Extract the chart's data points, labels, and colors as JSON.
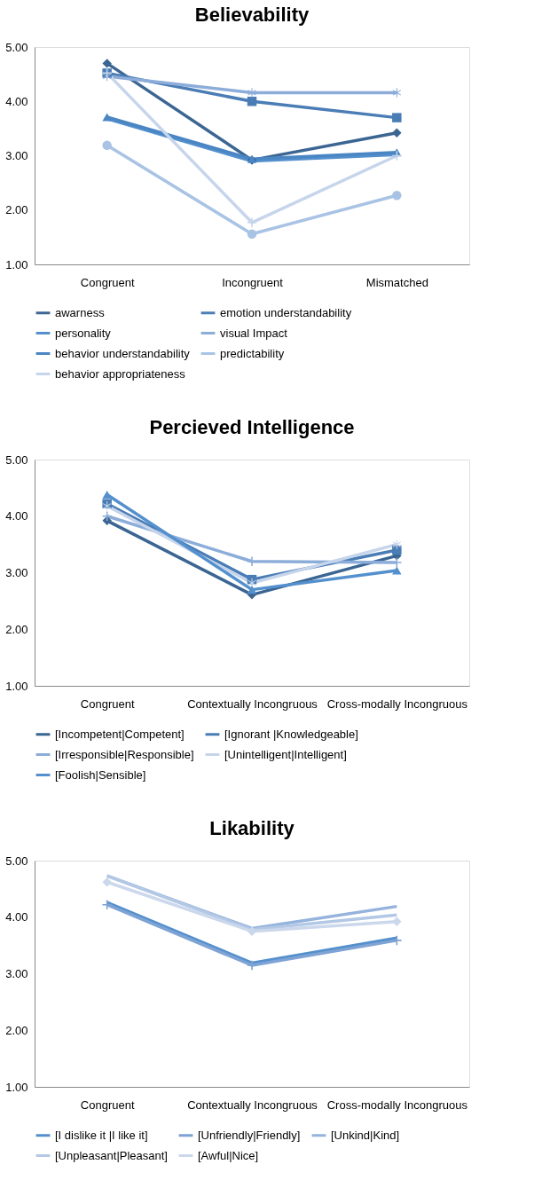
{
  "chart_data": [
    {
      "type": "line",
      "title": "Believability",
      "categories": [
        "Congruent",
        "Incongruent",
        "Mismatched"
      ],
      "ylim": [
        1,
        5
      ],
      "yticks": [
        {
          "value": 1,
          "label": "1.00"
        },
        {
          "value": 2,
          "label": "2.00"
        },
        {
          "value": 3,
          "label": "3.00"
        },
        {
          "value": 4,
          "label": "4.00"
        },
        {
          "value": 5,
          "label": "5.00"
        }
      ],
      "grid": false,
      "legend": "bottom",
      "series": [
        {
          "name": "awarness",
          "color": "#3b6592",
          "marker": "diamond",
          "values": [
            4.7,
            2.92,
            3.42
          ]
        },
        {
          "name": "emotion understandability",
          "color": "#4a7db5",
          "marker": "square",
          "values": [
            4.52,
            4.0,
            3.7
          ]
        },
        {
          "name": "personality",
          "color": "#5490cd",
          "marker": "none",
          "values": [
            3.68,
            2.9,
            3.02
          ]
        },
        {
          "name": "visual Impact",
          "color": "#8cadd9",
          "marker": "star",
          "values": [
            4.46,
            4.16,
            4.16
          ]
        },
        {
          "name": "behavior understandability",
          "color": "#4a86c4",
          "marker": "triangle",
          "values": [
            3.71,
            2.94,
            3.06
          ]
        },
        {
          "name": "predictability",
          "color": "#a9c3e4",
          "marker": "circle",
          "values": [
            3.19,
            1.56,
            2.27
          ]
        },
        {
          "name": "behavior appropriateness",
          "color": "#c6d5eb",
          "marker": "cross",
          "values": [
            4.52,
            1.77,
            3.0
          ]
        }
      ]
    },
    {
      "type": "line",
      "title": "Percieved Intelligence",
      "categories": [
        "Congruent",
        "Contextually Incongruous",
        "Cross-modally Incongruous"
      ],
      "ylim": [
        1,
        5
      ],
      "yticks": [
        {
          "value": 1,
          "label": "1.00"
        },
        {
          "value": 2,
          "label": "2.00"
        },
        {
          "value": 3,
          "label": "3.00"
        },
        {
          "value": 4,
          "label": "4.00"
        },
        {
          "value": 5,
          "label": "5.00"
        }
      ],
      "grid": false,
      "legend": "bottom",
      "series": [
        {
          "name": "[Incompetent|Competent]",
          "color": "#3b6592",
          "marker": "diamond",
          "values": [
            3.92,
            2.61,
            3.3
          ]
        },
        {
          "name": "[Ignorant |Knowledgeable]",
          "color": "#4a7db5",
          "marker": "square",
          "values": [
            4.22,
            2.88,
            3.4
          ]
        },
        {
          "name": "[Irresponsible|Responsible]",
          "color": "#8cadd9",
          "marker": "cross",
          "values": [
            4.0,
            3.2,
            3.18
          ]
        },
        {
          "name": "[Unintelligent|Intelligent]",
          "color": "#c6d5eb",
          "marker": "star",
          "values": [
            4.18,
            2.82,
            3.5
          ]
        },
        {
          "name": "[Foolish|Sensible]",
          "color": "#5490cd",
          "marker": "triangle",
          "values": [
            4.38,
            2.7,
            3.04
          ]
        }
      ]
    },
    {
      "type": "line",
      "title": "Likability",
      "categories": [
        "Congruent",
        "Contextually Incongruous",
        "Cross-modally Incongruous"
      ],
      "ylim": [
        1,
        5
      ],
      "yticks": [
        {
          "value": 1,
          "label": "1.00"
        },
        {
          "value": 2,
          "label": "2.00"
        },
        {
          "value": 3,
          "label": "3.00"
        },
        {
          "value": 4,
          "label": "4.00"
        },
        {
          "value": 5,
          "label": "5.00"
        }
      ],
      "grid": false,
      "legend": "bottom",
      "series": [
        {
          "name": "[I dislike it |I like it]",
          "color": "#5490cd",
          "marker": "none",
          "values": [
            4.26,
            3.19,
            3.63
          ]
        },
        {
          "name": "[Unfriendly|Friendly]",
          "color": "#7ea3d4",
          "marker": "cross",
          "values": [
            4.22,
            3.15,
            3.59
          ]
        },
        {
          "name": "[Unkind|Kind]",
          "color": "#95b3dc",
          "marker": "none",
          "values": [
            4.73,
            3.8,
            4.19
          ]
        },
        {
          "name": "[Unpleasant|Pleasant]",
          "color": "#b3c8e5",
          "marker": "none",
          "values": [
            4.73,
            3.78,
            4.04
          ]
        },
        {
          "name": "[Awful|Nice]",
          "color": "#cbd8ec",
          "marker": "diamond",
          "values": [
            4.62,
            3.75,
            3.92
          ]
        }
      ]
    }
  ]
}
